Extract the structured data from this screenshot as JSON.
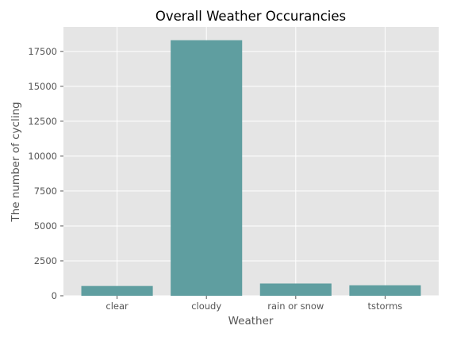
{
  "chart_data": {
    "type": "bar",
    "title": "Overall Weather Occurancies",
    "xlabel": "Weather",
    "ylabel": "The number of cycling",
    "categories": [
      "clear",
      "cloudy",
      "rain or snow",
      "tstorms"
    ],
    "values": [
      700,
      18300,
      880,
      750
    ],
    "ylim": [
      0,
      19250
    ],
    "yticks": [
      0,
      2500,
      5000,
      7500,
      10000,
      12500,
      15000,
      17500
    ],
    "grid": true,
    "legend": "none",
    "colors": {
      "bar": "#5f9ea0",
      "plot_background": "#e5e5e5",
      "grid": "#ffffff"
    }
  }
}
